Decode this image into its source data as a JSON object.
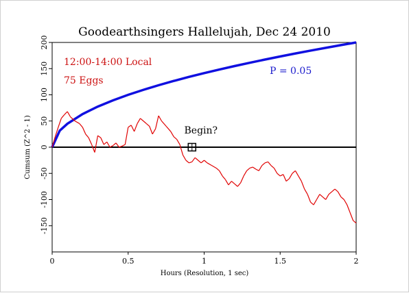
{
  "chart_data": {
    "type": "line",
    "title": "Goodearthsingers Hallelujah, Dec 24 2010",
    "xlabel": "Hours (Resolution, 1 sec)",
    "ylabel": "Cumsum (Z^2 - 1)",
    "xlim": [
      0,
      2
    ],
    "ylim": [
      -200,
      200
    ],
    "x_ticks": [
      {
        "value": 0,
        "label": "0"
      },
      {
        "value": 0.5,
        "label": "0.5"
      },
      {
        "value": 1,
        "label": "1"
      },
      {
        "value": 1.5,
        "label": "1.5"
      },
      {
        "value": 2,
        "label": "2"
      }
    ],
    "y_ticks": [
      {
        "value": 200,
        "label": "200"
      },
      {
        "value": 150,
        "label": "150"
      },
      {
        "value": 100,
        "label": "100"
      },
      {
        "value": 50,
        "label": "50"
      },
      {
        "value": 0,
        "label": "0"
      },
      {
        "value": -50,
        "label": "-50"
      },
      {
        "value": -100,
        "label": "-100"
      },
      {
        "value": -150,
        "label": "-150"
      }
    ],
    "annotations": {
      "time": "12:00-14:00 Local",
      "eggs": "75 Eggs",
      "p_value": "P = 0.05",
      "begin": "Begin?"
    },
    "begin_marker": {
      "x": 0.92,
      "y": 0
    },
    "colors": {
      "cumsum": "#e00000",
      "envelope": "#1010e0",
      "baseline": "#000000",
      "annotation_red": "#cc1111",
      "annotation_blue": "#1a1acc"
    },
    "series": [
      {
        "role": "cumsum",
        "x": [
          0,
          0.02,
          0.04,
          0.06,
          0.08,
          0.1,
          0.12,
          0.15,
          0.18,
          0.2,
          0.22,
          0.24,
          0.26,
          0.28,
          0.3,
          0.32,
          0.34,
          0.36,
          0.38,
          0.4,
          0.42,
          0.44,
          0.46,
          0.48,
          0.5,
          0.52,
          0.54,
          0.56,
          0.58,
          0.6,
          0.62,
          0.64,
          0.66,
          0.68,
          0.7,
          0.72,
          0.75,
          0.78,
          0.8,
          0.82,
          0.84,
          0.86,
          0.88,
          0.9,
          0.92,
          0.94,
          0.96,
          0.98,
          1.0,
          1.02,
          1.05,
          1.08,
          1.1,
          1.12,
          1.14,
          1.16,
          1.18,
          1.2,
          1.22,
          1.24,
          1.26,
          1.28,
          1.3,
          1.32,
          1.34,
          1.36,
          1.38,
          1.4,
          1.42,
          1.44,
          1.46,
          1.48,
          1.5,
          1.52,
          1.54,
          1.56,
          1.58,
          1.6,
          1.62,
          1.64,
          1.66,
          1.68,
          1.7,
          1.72,
          1.74,
          1.76,
          1.78,
          1.8,
          1.82,
          1.84,
          1.86,
          1.88,
          1.9,
          1.92,
          1.94,
          1.96,
          1.98,
          2.0
        ],
        "values": [
          0,
          20,
          38,
          55,
          62,
          68,
          58,
          50,
          45,
          38,
          25,
          18,
          5,
          -10,
          22,
          18,
          5,
          10,
          0,
          3,
          8,
          0,
          2,
          5,
          38,
          42,
          30,
          45,
          55,
          50,
          45,
          40,
          25,
          35,
          60,
          50,
          40,
          30,
          20,
          15,
          5,
          -15,
          -25,
          -30,
          -28,
          -20,
          -25,
          -30,
          -25,
          -30,
          -35,
          -40,
          -45,
          -55,
          -62,
          -72,
          -65,
          -70,
          -75,
          -68,
          -55,
          -45,
          -40,
          -38,
          -42,
          -45,
          -35,
          -30,
          -28,
          -35,
          -40,
          -50,
          -55,
          -52,
          -65,
          -60,
          -50,
          -45,
          -55,
          -65,
          -80,
          -90,
          -105,
          -110,
          -100,
          -90,
          -95,
          -100,
          -90,
          -85,
          -80,
          -85,
          -95,
          -100,
          -110,
          -125,
          -140,
          -145
        ]
      },
      {
        "role": "envelope",
        "x": [
          0,
          0.05,
          0.1,
          0.2,
          0.3,
          0.4,
          0.5,
          0.6,
          0.7,
          0.8,
          0.9,
          1.0,
          1.1,
          1.2,
          1.3,
          1.4,
          1.5,
          1.6,
          1.7,
          1.8,
          1.9,
          2.0
        ],
        "values": [
          0,
          31.6,
          44.7,
          63.2,
          77.5,
          89.4,
          100,
          109.5,
          118.3,
          126.5,
          134.2,
          141.4,
          148.3,
          154.9,
          161.2,
          167.3,
          173.2,
          178.9,
          184.4,
          189.7,
          194.9,
          200
        ]
      }
    ]
  }
}
